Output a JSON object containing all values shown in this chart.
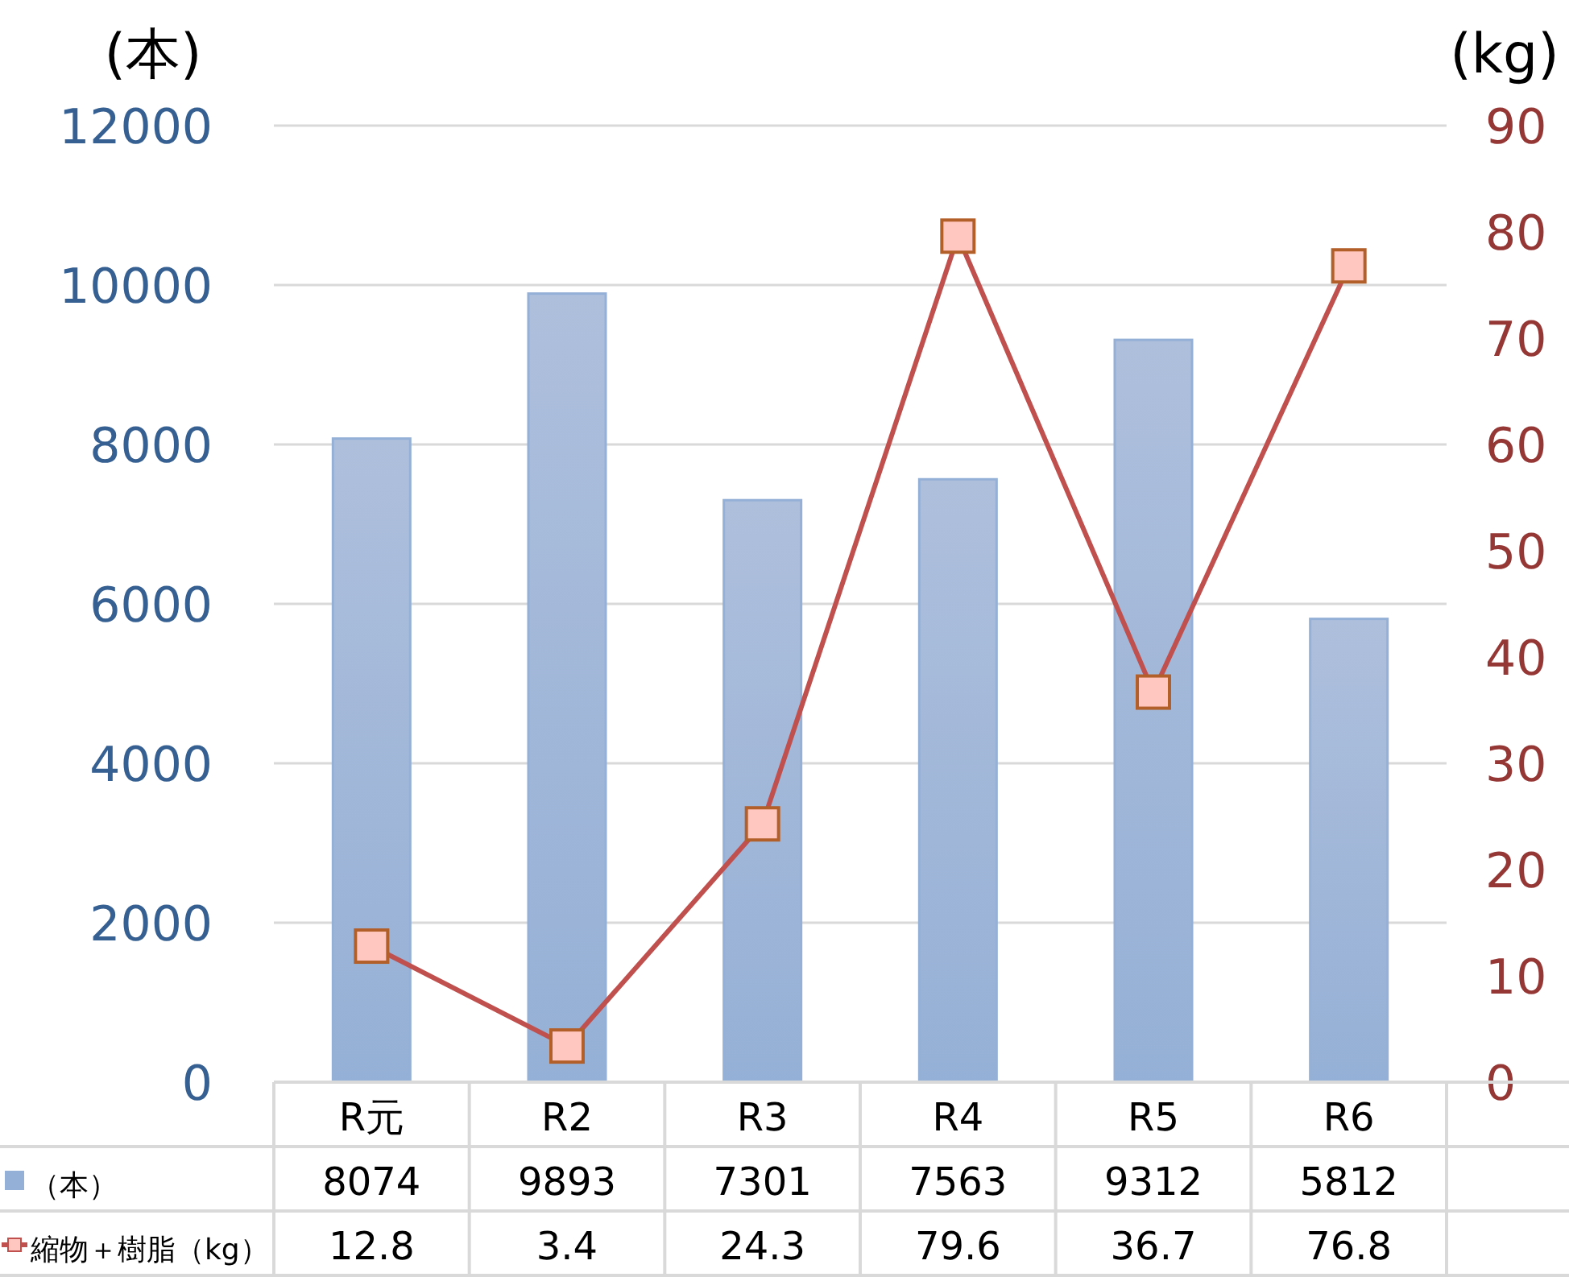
{
  "chart_data": {
    "type": "bar",
    "ylabel": "(本)",
    "y2label": "(kg)",
    "categories": [
      "R元",
      "R2",
      "R3",
      "R4",
      "R5",
      "R6"
    ],
    "series": [
      {
        "name": "（本）",
        "color": "#95b0d6",
        "values": [
          8074,
          9893,
          7301,
          7563,
          9312,
          5812
        ]
      },
      {
        "name": "縮物＋樹脂（kg）",
        "type": "line",
        "axis": "y2",
        "color": "#c0504d",
        "marker": "square",
        "values": [
          12.8,
          3.4,
          24.3,
          79.6,
          36.7,
          76.8
        ]
      }
    ],
    "ylim": [
      0,
      12000
    ],
    "yticks": [
      0,
      2000,
      4000,
      6000,
      8000,
      10000,
      12000
    ],
    "y2lim": [
      0,
      90
    ],
    "y2ticks": [
      0,
      10,
      20,
      30,
      40,
      50,
      60,
      70,
      80,
      90
    ],
    "grid": "y",
    "data_labels": true,
    "legend": "bottom left"
  }
}
